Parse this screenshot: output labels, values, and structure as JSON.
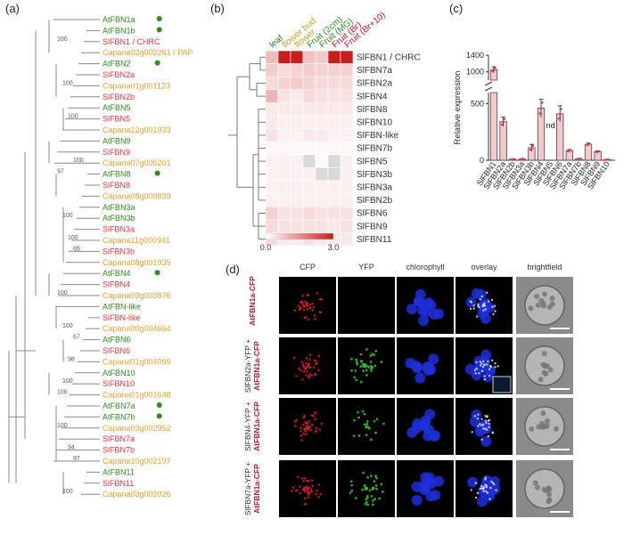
{
  "panels": {
    "a": "(a)",
    "b": "(b)",
    "c": "(c)",
    "d": "(d)"
  },
  "colors": {
    "arabidopsis": "#2e8b1c",
    "tomato": "#e8343f",
    "pepper": "#f0a030",
    "heat_low": "#ffffff",
    "heat_high": "#c81e1e",
    "missing": "#d9d9d9"
  },
  "tree": {
    "leaves": [
      {
        "label": "AtFBN1a",
        "species": "arabidopsis",
        "dot": true
      },
      {
        "label": "AtFBN1b",
        "species": "arabidopsis",
        "dot": true
      },
      {
        "label": "SlFBN1 / CHRC",
        "species": "tomato",
        "dot": false
      },
      {
        "label": "Capana02g002261 / PAP",
        "species": "pepper",
        "dot": false
      },
      {
        "label": "AtFBN2",
        "species": "arabidopsis",
        "dot": true
      },
      {
        "label": "SlFBN2a",
        "species": "tomato",
        "dot": false
      },
      {
        "label": "Capana01g001123",
        "species": "pepper",
        "dot": false
      },
      {
        "label": "SlFBN2b",
        "species": "tomato",
        "dot": false
      },
      {
        "label": "AtFBN5",
        "species": "arabidopsis",
        "dot": false
      },
      {
        "label": "SlFBN5",
        "species": "tomato",
        "dot": false
      },
      {
        "label": "Capana12g001933",
        "species": "pepper",
        "dot": false
      },
      {
        "label": "AtFBN9",
        "species": "arabidopsis",
        "dot": false
      },
      {
        "label": "SlFBN9",
        "species": "tomato",
        "dot": false
      },
      {
        "label": "Capana07g000201",
        "species": "pepper",
        "dot": false
      },
      {
        "label": "AtFBN8",
        "species": "arabidopsis",
        "dot": true
      },
      {
        "label": "SlFBN8",
        "species": "tomato",
        "dot": false
      },
      {
        "label": "Capana08g000839",
        "species": "pepper",
        "dot": false
      },
      {
        "label": "AtFBN3a",
        "species": "arabidopsis",
        "dot": false
      },
      {
        "label": "AtFBN3b",
        "species": "arabidopsis",
        "dot": false
      },
      {
        "label": "SlFBN3a",
        "species": "tomato",
        "dot": false
      },
      {
        "label": "Capana11g000941",
        "species": "pepper",
        "dot": false
      },
      {
        "label": "SlFBN3b",
        "species": "tomato",
        "dot": false
      },
      {
        "label": "Capana08g001935",
        "species": "pepper",
        "dot": false
      },
      {
        "label": "AtFBN4",
        "species": "arabidopsis",
        "dot": true
      },
      {
        "label": "SlFBN4",
        "species": "tomato",
        "dot": false
      },
      {
        "label": "Capana03g003876",
        "species": "pepper",
        "dot": false
      },
      {
        "label": "AtFBN-like",
        "species": "arabidopsis",
        "dot": false
      },
      {
        "label": "SlFBN-like",
        "species": "tomato",
        "dot": false
      },
      {
        "label": "Capana00g004664",
        "species": "pepper",
        "dot": false
      },
      {
        "label": "AtFBN6",
        "species": "arabidopsis",
        "dot": false
      },
      {
        "label": "SlFBN6",
        "species": "tomato",
        "dot": false
      },
      {
        "label": "Capana01g004099",
        "species": "pepper",
        "dot": false
      },
      {
        "label": "AtFBN10",
        "species": "arabidopsis",
        "dot": false
      },
      {
        "label": "SlFBN10",
        "species": "tomato",
        "dot": false
      },
      {
        "label": "Capana01g001648",
        "species": "pepper",
        "dot": false
      },
      {
        "label": "AtFBN7a",
        "species": "arabidopsis",
        "dot": true
      },
      {
        "label": "AtFBN7b",
        "species": "arabidopsis",
        "dot": true
      },
      {
        "label": "Capana03g002952",
        "species": "pepper",
        "dot": false
      },
      {
        "label": "SlFBN7a",
        "species": "tomato",
        "dot": false
      },
      {
        "label": "SlFBN7b",
        "species": "tomato",
        "dot": false
      },
      {
        "label": "Capana10g002197",
        "species": "pepper",
        "dot": false
      },
      {
        "label": "AtFBN11",
        "species": "arabidopsis",
        "dot": false
      },
      {
        "label": "SlFBN11",
        "species": "tomato",
        "dot": false
      },
      {
        "label": "Capana03g002026",
        "species": "pepper",
        "dot": false
      }
    ],
    "bootstrap": [
      "100",
      "100",
      "100",
      "100",
      "97",
      "100",
      "100",
      "65",
      "100",
      "100",
      "98",
      "67",
      "100",
      "100",
      "94",
      "97",
      "100",
      "100"
    ]
  },
  "heatmap": {
    "columns": [
      {
        "label": "leaf",
        "color": "#2e7d1e"
      },
      {
        "label": "flower bud",
        "color": "#c9a22a"
      },
      {
        "label": "flower",
        "color": "#c9a22a"
      },
      {
        "label": "Fruit (2cm)",
        "color": "#2e8b1c"
      },
      {
        "label": "Fruit (MG)",
        "color": "#2e8b1c"
      },
      {
        "label": "Fruit (Br)",
        "color": "#c0122a"
      },
      {
        "label": "Fruit (Br+10)",
        "color": "#c0122a"
      }
    ],
    "rows": [
      "SlFBN1 / CHRC",
      "SlFBN7a",
      "SlFBN2a",
      "SlFBN4",
      "SlFBN8",
      "SlFBN10",
      "SlFBN-like",
      "SlFBN7b",
      "SlFBN5",
      "SlFBN3b",
      "SlFBN3a",
      "SlFBN2b",
      "SlFBN6",
      "SlFBN9",
      "SlFBN11"
    ],
    "values": [
      [
        0.9,
        3.0,
        3.0,
        0.8,
        0.7,
        3.0,
        3.0
      ],
      [
        0.7,
        0.5,
        0.6,
        0.7,
        0.6,
        0.6,
        0.6
      ],
      [
        0.5,
        0.6,
        0.7,
        0.6,
        0.5,
        0.5,
        0.5
      ],
      [
        1.0,
        0.4,
        0.3,
        0.5,
        0.4,
        0.4,
        0.4
      ],
      [
        0.3,
        0.3,
        0.3,
        0.3,
        0.3,
        0.3,
        0.3
      ],
      [
        0.3,
        0.2,
        0.2,
        0.2,
        0.2,
        0.2,
        0.2
      ],
      [
        0.4,
        0.2,
        0.2,
        0.3,
        0.3,
        0.2,
        0.2
      ],
      [
        0.1,
        0.1,
        0.1,
        0.1,
        0.1,
        0.1,
        0.1
      ],
      [
        0.2,
        0.2,
        0.2,
        null,
        0.1,
        null,
        0.2
      ],
      [
        0.2,
        0.2,
        0.2,
        0.2,
        null,
        null,
        0.2
      ],
      [
        0.2,
        0.2,
        0.2,
        0.2,
        0.2,
        0.2,
        0.2
      ],
      [
        0.2,
        0.2,
        0.2,
        0.2,
        0.2,
        0.2,
        0.2
      ],
      [
        0.6,
        0.4,
        0.4,
        0.5,
        0.4,
        0.4,
        0.4
      ],
      [
        0.5,
        0.4,
        0.4,
        0.4,
        0.4,
        0.3,
        0.4
      ],
      [
        0.5,
        0.3,
        0.3,
        0.4,
        0.3,
        0.3,
        0.3
      ]
    ],
    "colorbar": {
      "min": "0.0",
      "max": "3.0"
    }
  },
  "chart_data": {
    "type": "bar",
    "ylabel": "Relative expression",
    "categories": [
      "SlFBN1",
      "SlFBN2a",
      "SlFBN2b",
      "SlFBN3a",
      "SlFBN3b",
      "SlFBN4",
      "SlFBN5",
      "SlFBN6",
      "SlFBN7a",
      "SlFBN7b",
      "SlFBN8",
      "SlFBN9",
      "SlFBN10"
    ],
    "values": [
      1050,
      340,
      8,
      10,
      110,
      460,
      null,
      410,
      85,
      12,
      140,
      75,
      5
    ],
    "errors": [
      70,
      40,
      3,
      4,
      30,
      80,
      null,
      70,
      10,
      4,
      12,
      8,
      2
    ],
    "annotations": {
      "SlFBN5": "nd"
    },
    "y_ticks": [
      "0",
      "500",
      "1000",
      "1400"
    ],
    "ylim_lower": [
      0,
      550
    ],
    "ylim_upper": [
      800,
      1400
    ],
    "axis_break": true
  },
  "microscopy": {
    "columns": [
      "CFP",
      "YFP",
      "chlorophyll",
      "overlay",
      "brightfield"
    ],
    "rows": [
      {
        "top": "",
        "bottom": "AtFBN1a-CFP"
      },
      {
        "top": "SlFBN2a-YFP +",
        "bottom": "AtFBN1a-CFP"
      },
      {
        "top": "SlFBN4-YFP +",
        "bottom": "AtFBN1a-CFP"
      },
      {
        "top": "SlFBN7a-YFP +",
        "bottom": "AtFBN1a-CFP"
      }
    ]
  }
}
